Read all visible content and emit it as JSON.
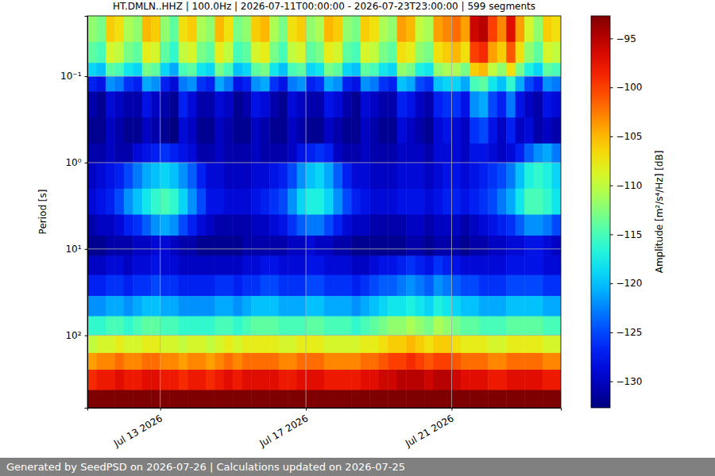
{
  "chart_data": {
    "type": "heatmap",
    "title": "HT.DMLN..HHZ | 100.0Hz | 2026-07-11T00:00:00 - 2026-07-23T23:00:00 | 599 segments",
    "footer": "Generated by SeedPSD on 2026-07-26 | Calculations updated on 2026-07-25",
    "y_label": "Period [s]",
    "log": "y",
    "grid": true,
    "color": "jet",
    "xlim": [
      "2026-07-11T00:00",
      "2026-07-24T00:00"
    ],
    "xticks": [
      {
        "value": "2026-07-13T00:00",
        "label": "Jul 13 2026"
      },
      {
        "value": "2026-07-17T00:00",
        "label": "Jul 17 2026"
      },
      {
        "value": "2026-07-21T00:00",
        "label": "Jul 21 2026"
      }
    ],
    "ylim": [
      0.02,
      690
    ],
    "yticks": [
      {
        "value": 0.1,
        "label": "10⁻¹"
      },
      {
        "value": 1,
        "label": "10⁰"
      },
      {
        "value": 10,
        "label": "10¹"
      },
      {
        "value": 100,
        "label": "10²"
      }
    ],
    "colorbar": {
      "label": "Amplitude [m²/s⁴/Hz] [dB]",
      "range": [
        -132.7,
        -92.7
      ],
      "ticks": [
        {
          "value": -95,
          "label": "−95"
        },
        {
          "value": -100,
          "label": "−100"
        },
        {
          "value": -105,
          "label": "−105"
        },
        {
          "value": -110,
          "label": "−110"
        },
        {
          "value": -115,
          "label": "−115"
        },
        {
          "value": -120,
          "label": "−120"
        },
        {
          "value": -125,
          "label": "−125"
        },
        {
          "value": -130,
          "label": "−130"
        }
      ]
    },
    "x": [
      "2026-07-11T00:00",
      "2026-07-11T06:00",
      "2026-07-11T12:00",
      "2026-07-11T18:00",
      "2026-07-12T00:00",
      "2026-07-12T06:00",
      "2026-07-12T12:00",
      "2026-07-12T18:00",
      "2026-07-13T00:00",
      "2026-07-13T06:00",
      "2026-07-13T12:00",
      "2026-07-13T18:00",
      "2026-07-14T00:00",
      "2026-07-14T06:00",
      "2026-07-14T12:00",
      "2026-07-14T18:00",
      "2026-07-15T00:00",
      "2026-07-15T06:00",
      "2026-07-15T12:00",
      "2026-07-15T18:00",
      "2026-07-16T00:00",
      "2026-07-16T06:00",
      "2026-07-16T12:00",
      "2026-07-16T18:00",
      "2026-07-17T00:00",
      "2026-07-17T06:00",
      "2026-07-17T12:00",
      "2026-07-17T18:00",
      "2026-07-18T00:00",
      "2026-07-18T06:00",
      "2026-07-18T12:00",
      "2026-07-18T18:00",
      "2026-07-19T00:00",
      "2026-07-19T06:00",
      "2026-07-19T12:00",
      "2026-07-19T18:00",
      "2026-07-20T00:00",
      "2026-07-20T06:00",
      "2026-07-20T12:00",
      "2026-07-20T18:00",
      "2026-07-21T00:00",
      "2026-07-21T06:00",
      "2026-07-21T12:00",
      "2026-07-21T18:00",
      "2026-07-22T00:00",
      "2026-07-22T06:00",
      "2026-07-22T12:00",
      "2026-07-22T18:00",
      "2026-07-23T00:00",
      "2026-07-23T06:00",
      "2026-07-23T12:00",
      "2026-07-23T18:00"
    ],
    "y_bins": [
      0.02,
      0.04,
      0.07,
      0.1,
      0.15,
      0.3,
      0.6,
      1,
      2,
      4,
      7,
      12,
      20,
      35,
      60,
      100,
      160,
      250,
      430,
      690
    ],
    "cells": [
      [
        -112,
        -113,
        -106,
        -107,
        -111,
        -112,
        -105,
        -106,
        -112,
        -114,
        -107,
        -106,
        -111,
        -112,
        -105,
        -107,
        -113,
        -112,
        -106,
        -105,
        -111,
        -113,
        -107,
        -106,
        -112,
        -111,
        -105,
        -106,
        -112,
        -113,
        -106,
        -107,
        -111,
        -112,
        -104,
        -105,
        -110,
        -111,
        -104,
        -103,
        -102,
        -104,
        -96,
        -95,
        -100,
        -103,
        -97,
        -104,
        -109,
        -112,
        -106,
        -107
      ],
      [
        -114,
        -115,
        -109,
        -110,
        -113,
        -114,
        -108,
        -109,
        -114,
        -116,
        -110,
        -109,
        -113,
        -114,
        -108,
        -110,
        -115,
        -114,
        -109,
        -108,
        -113,
        -115,
        -110,
        -109,
        -114,
        -113,
        -108,
        -109,
        -114,
        -115,
        -109,
        -110,
        -113,
        -114,
        -107,
        -108,
        -112,
        -113,
        -107,
        -106,
        -105,
        -107,
        -100,
        -99,
        -104,
        -106,
        -101,
        -107,
        -112,
        -114,
        -109,
        -110
      ],
      [
        -119,
        -120,
        -114,
        -115,
        -118,
        -119,
        -113,
        -114,
        -119,
        -121,
        -115,
        -114,
        -118,
        -119,
        -113,
        -115,
        -120,
        -119,
        -114,
        -113,
        -118,
        -120,
        -115,
        -114,
        -119,
        -118,
        -113,
        -114,
        -119,
        -120,
        -114,
        -115,
        -118,
        -119,
        -112,
        -113,
        -117,
        -118,
        -112,
        -111,
        -111,
        -113,
        -106,
        -105,
        -110,
        -112,
        -107,
        -113,
        -117,
        -119,
        -114,
        -115
      ],
      [
        -127,
        -128,
        -122,
        -123,
        -126,
        -127,
        -121,
        -122,
        -127,
        -129,
        -123,
        -122,
        -126,
        -127,
        -121,
        -123,
        -128,
        -127,
        -122,
        -121,
        -126,
        -128,
        -123,
        -122,
        -127,
        -126,
        -121,
        -122,
        -127,
        -128,
        -122,
        -123,
        -126,
        -127,
        -120,
        -121,
        -125,
        -126,
        -120,
        -119,
        -119,
        -121,
        -115,
        -114,
        -118,
        -120,
        -116,
        -121,
        -125,
        -127,
        -122,
        -123
      ],
      [
        -131,
        -132,
        -129,
        -130,
        -131,
        -131,
        -128,
        -130,
        -131,
        -132,
        -127,
        -129,
        -131,
        -131,
        -129,
        -130,
        -132,
        -131,
        -128,
        -129,
        -131,
        -132,
        -129,
        -130,
        -131,
        -131,
        -128,
        -129,
        -131,
        -132,
        -129,
        -130,
        -131,
        -131,
        -127,
        -128,
        -130,
        -131,
        -127,
        -126,
        -126,
        -128,
        -122,
        -121,
        -125,
        -127,
        -123,
        -128,
        -130,
        -131,
        -128,
        -129
      ],
      [
        -132,
        -132,
        -130,
        -131,
        -132,
        -132,
        -130,
        -131,
        -132,
        -133,
        -129,
        -130,
        -132,
        -132,
        -130,
        -131,
        -132,
        -132,
        -130,
        -131,
        -132,
        -132,
        -130,
        -131,
        -132,
        -132,
        -130,
        -131,
        -132,
        -132,
        -130,
        -131,
        -132,
        -132,
        -129,
        -130,
        -131,
        -132,
        -129,
        -128,
        -129,
        -130,
        -126,
        -125,
        -128,
        -130,
        -127,
        -130,
        -129,
        -131,
        -130,
        -131
      ],
      [
        -131,
        -131,
        -130,
        -131,
        -131,
        -129,
        -128,
        -127,
        -126,
        -127,
        -128,
        -129,
        -131,
        -131,
        -130,
        -131,
        -131,
        -131,
        -130,
        -131,
        -131,
        -131,
        -130,
        -128,
        -127,
        -126,
        -127,
        -130,
        -131,
        -131,
        -130,
        -131,
        -131,
        -131,
        -130,
        -130,
        -130,
        -131,
        -129,
        -129,
        -129,
        -130,
        -128,
        -128,
        -129,
        -130,
        -129,
        -127,
        -124,
        -122,
        -121,
        -123
      ],
      [
        -130,
        -129,
        -128,
        -127,
        -125,
        -123,
        -121,
        -120,
        -119,
        -120,
        -122,
        -124,
        -127,
        -129,
        -129,
        -130,
        -130,
        -130,
        -129,
        -129,
        -128,
        -127,
        -125,
        -122,
        -120,
        -119,
        -121,
        -124,
        -127,
        -129,
        -129,
        -130,
        -130,
        -130,
        -129,
        -129,
        -129,
        -130,
        -129,
        -128,
        -128,
        -129,
        -128,
        -127,
        -126,
        -125,
        -123,
        -120,
        -117,
        -116,
        -117,
        -119
      ],
      [
        -129,
        -128,
        -127,
        -125,
        -122,
        -120,
        -118,
        -116,
        -115,
        -116,
        -119,
        -122,
        -125,
        -128,
        -128,
        -129,
        -129,
        -129,
        -128,
        -127,
        -126,
        -125,
        -122,
        -119,
        -117,
        -117,
        -119,
        -122,
        -125,
        -127,
        -128,
        -129,
        -129,
        -129,
        -128,
        -128,
        -128,
        -129,
        -128,
        -127,
        -127,
        -128,
        -127,
        -126,
        -125,
        -123,
        -121,
        -118,
        -115,
        -115,
        -116,
        -118
      ],
      [
        -131,
        -130,
        -130,
        -129,
        -127,
        -126,
        -124,
        -122,
        -121,
        -122,
        -125,
        -127,
        -129,
        -130,
        -131,
        -131,
        -131,
        -131,
        -130,
        -130,
        -129,
        -128,
        -126,
        -124,
        -123,
        -123,
        -125,
        -127,
        -129,
        -130,
        -130,
        -131,
        -131,
        -131,
        -131,
        -130,
        -130,
        -131,
        -130,
        -130,
        -130,
        -131,
        -130,
        -129,
        -128,
        -127,
        -126,
        -124,
        -122,
        -122,
        -123,
        -125
      ],
      [
        -132,
        -132,
        -131,
        -131,
        -131,
        -130,
        -130,
        -129,
        -129,
        -130,
        -131,
        -131,
        -132,
        -132,
        -132,
        -132,
        -132,
        -131,
        -131,
        -131,
        -131,
        -131,
        -130,
        -130,
        -129,
        -130,
        -130,
        -131,
        -131,
        -132,
        -132,
        -132,
        -132,
        -132,
        -132,
        -131,
        -131,
        -132,
        -131,
        -131,
        -131,
        -132,
        -131,
        -131,
        -130,
        -130,
        -129,
        -129,
        -128,
        -128,
        -129,
        -130
      ],
      [
        -130,
        -130,
        -129,
        -129,
        -130,
        -129,
        -129,
        -128,
        -129,
        -129,
        -130,
        -130,
        -130,
        -130,
        -130,
        -130,
        -130,
        -129,
        -129,
        -128,
        -128,
        -129,
        -129,
        -129,
        -128,
        -128,
        -129,
        -129,
        -129,
        -130,
        -130,
        -129,
        -128,
        -128,
        -127,
        -126,
        -127,
        -128,
        -126,
        -127,
        -128,
        -129,
        -129,
        -129,
        -129,
        -129,
        -128,
        -128,
        -128,
        -128,
        -129,
        -129
      ],
      [
        -127,
        -127,
        -126,
        -126,
        -127,
        -126,
        -126,
        -125,
        -126,
        -126,
        -127,
        -127,
        -127,
        -127,
        -126,
        -126,
        -127,
        -126,
        -126,
        -125,
        -125,
        -126,
        -126,
        -126,
        -125,
        -125,
        -126,
        -126,
        -126,
        -127,
        -126,
        -125,
        -124,
        -124,
        -123,
        -122,
        -123,
        -124,
        -122,
        -123,
        -124,
        -125,
        -125,
        -126,
        -126,
        -126,
        -125,
        -125,
        -125,
        -125,
        -126,
        -126
      ],
      [
        -122,
        -122,
        -121,
        -121,
        -122,
        -121,
        -120,
        -120,
        -121,
        -121,
        -122,
        -122,
        -122,
        -122,
        -121,
        -121,
        -122,
        -121,
        -120,
        -120,
        -120,
        -121,
        -121,
        -121,
        -120,
        -120,
        -121,
        -121,
        -121,
        -122,
        -121,
        -120,
        -119,
        -118,
        -118,
        -117,
        -118,
        -119,
        -117,
        -118,
        -119,
        -120,
        -120,
        -121,
        -121,
        -121,
        -120,
        -120,
        -120,
        -120,
        -121,
        -121
      ],
      [
        -116,
        -116,
        -115,
        -115,
        -116,
        -115,
        -114,
        -114,
        -115,
        -115,
        -116,
        -116,
        -116,
        -116,
        -115,
        -115,
        -116,
        -115,
        -114,
        -114,
        -114,
        -115,
        -115,
        -115,
        -114,
        -114,
        -115,
        -115,
        -115,
        -116,
        -115,
        -114,
        -113,
        -112,
        -112,
        -111,
        -112,
        -113,
        -111,
        -112,
        -113,
        -114,
        -114,
        -115,
        -115,
        -115,
        -114,
        -114,
        -114,
        -114,
        -115,
        -115
      ],
      [
        -110,
        -109,
        -109,
        -108,
        -109,
        -109,
        -108,
        -108,
        -109,
        -109,
        -110,
        -109,
        -109,
        -110,
        -109,
        -108,
        -109,
        -108,
        -108,
        -108,
        -108,
        -109,
        -109,
        -108,
        -108,
        -108,
        -109,
        -109,
        -109,
        -109,
        -108,
        -108,
        -107,
        -106,
        -106,
        -105,
        -106,
        -107,
        -106,
        -106,
        -107,
        -108,
        -108,
        -108,
        -109,
        -109,
        -108,
        -108,
        -108,
        -108,
        -109,
        -109
      ],
      [
        -104,
        -103,
        -103,
        -102,
        -103,
        -103,
        -102,
        -102,
        -103,
        -103,
        -104,
        -103,
        -103,
        -104,
        -103,
        -102,
        -103,
        -102,
        -102,
        -102,
        -102,
        -103,
        -103,
        -102,
        -102,
        -102,
        -103,
        -103,
        -103,
        -103,
        -102,
        -102,
        -101,
        -100,
        -100,
        -99,
        -100,
        -101,
        -100,
        -100,
        -101,
        -102,
        -102,
        -102,
        -103,
        -103,
        -102,
        -102,
        -102,
        -102,
        -103,
        -103
      ],
      [
        -99,
        -98,
        -98,
        -97,
        -98,
        -98,
        -97,
        -97,
        -98,
        -98,
        -99,
        -98,
        -98,
        -99,
        -98,
        -97,
        -98,
        -97,
        -97,
        -97,
        -97,
        -98,
        -98,
        -97,
        -97,
        -97,
        -98,
        -98,
        -98,
        -98,
        -97,
        -97,
        -96,
        -96,
        -95,
        -95,
        -95,
        -96,
        -95,
        -95,
        -96,
        -97,
        -97,
        -97,
        -98,
        -98,
        -97,
        -97,
        -97,
        -97,
        -98,
        -98
      ],
      [
        -90,
        -90,
        -90,
        -90,
        -90,
        -90,
        -90,
        -90,
        -90,
        -90,
        -90,
        -90,
        -90,
        -90,
        -90,
        -90,
        -90,
        -90,
        -90,
        -90,
        -90,
        -90,
        -90,
        -90,
        -90,
        -90,
        -90,
        -90,
        -90,
        -90,
        -90,
        -90,
        -90,
        -90,
        -90,
        -90,
        -90,
        -90,
        -90,
        -90,
        -90,
        -90,
        -90,
        -90,
        -90,
        -90,
        -90,
        -90,
        -90,
        -90,
        -90,
        -90
      ]
    ]
  }
}
